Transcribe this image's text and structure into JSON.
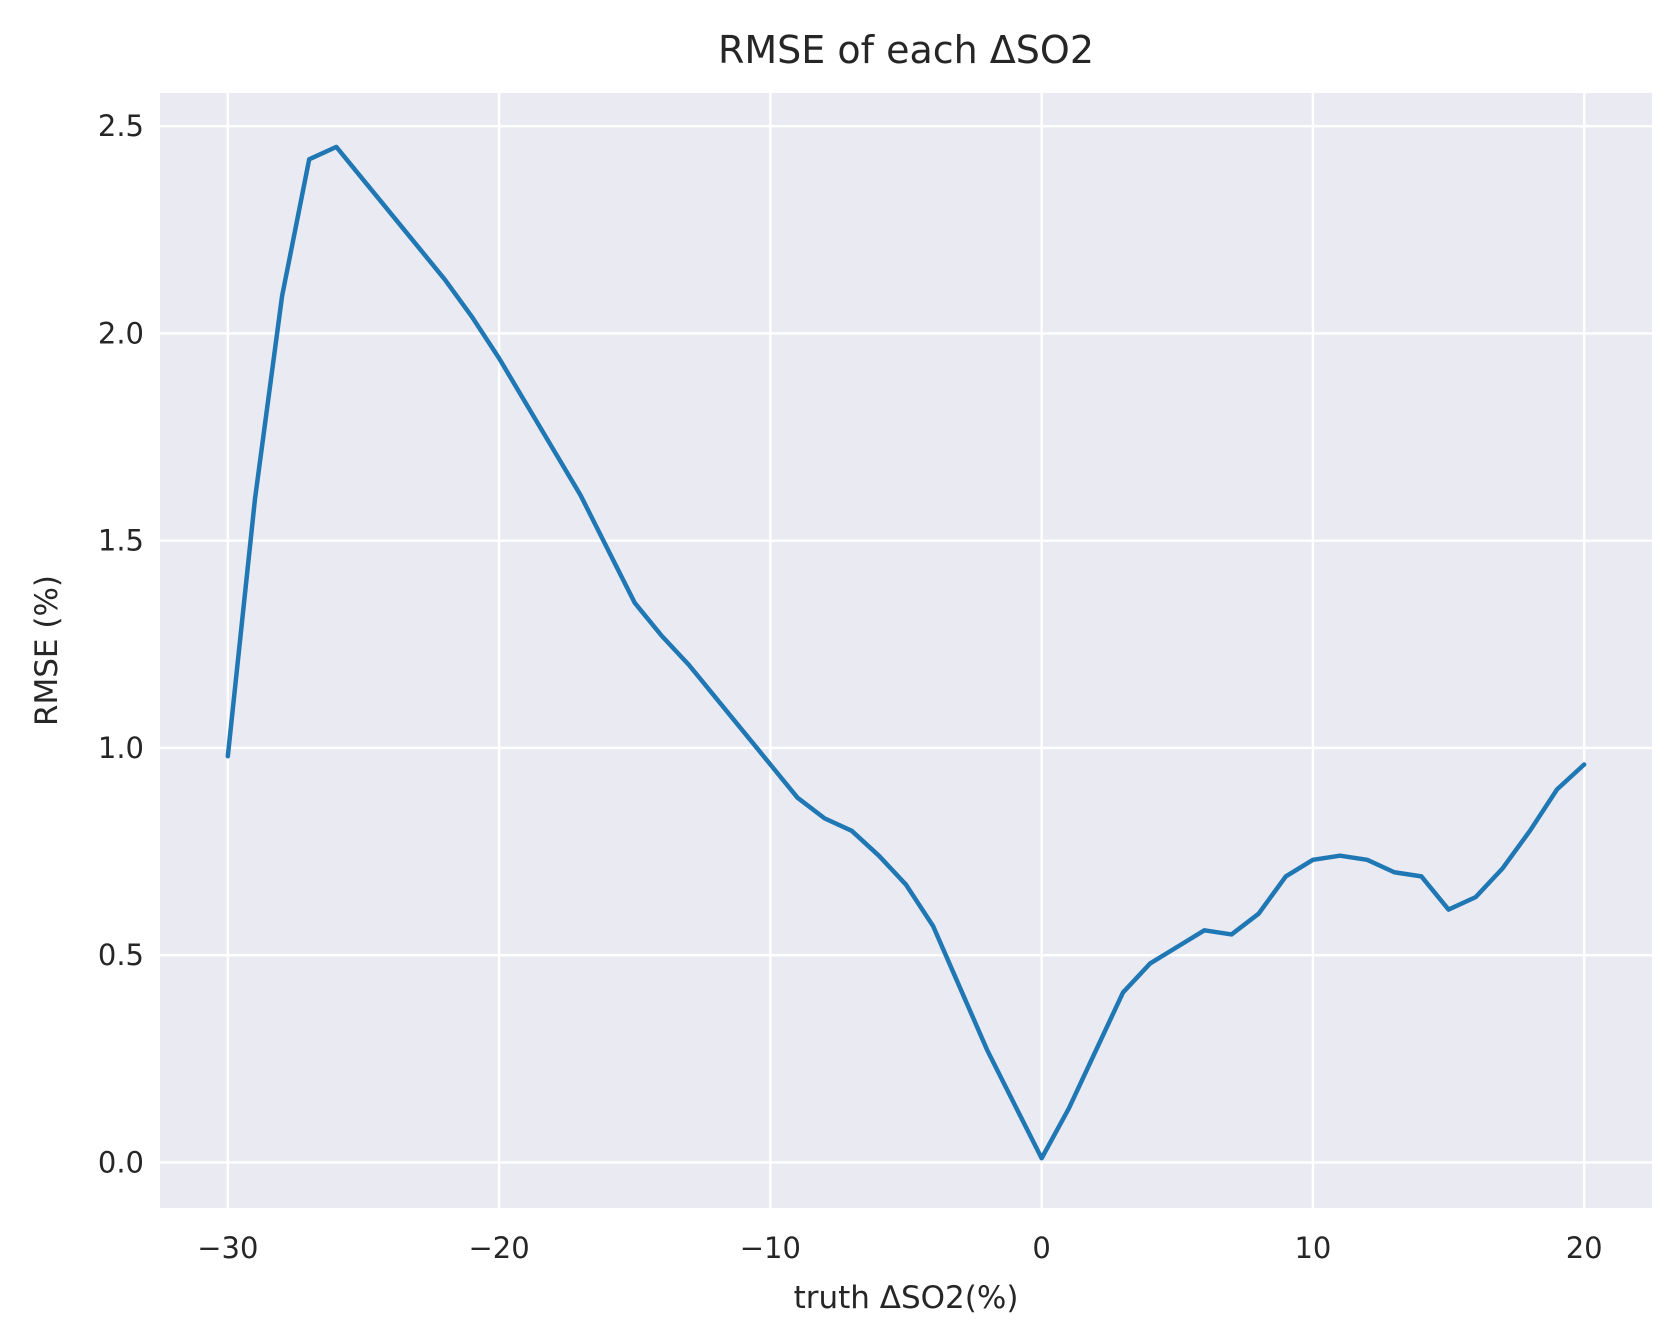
{
  "chart_data": {
    "type": "line",
    "title": "RMSE of each ΔSO2",
    "xlabel": "truth ΔSO2(%)",
    "ylabel": "RMSE (%)",
    "xlim": [
      -32.5,
      22.5
    ],
    "ylim": [
      -0.11,
      2.58
    ],
    "xticks": [
      -30,
      -20,
      -10,
      0,
      10,
      20
    ],
    "xtick_labels": [
      "−30",
      "−20",
      "−10",
      "0",
      "10",
      "20"
    ],
    "yticks": [
      0.0,
      0.5,
      1.0,
      1.5,
      2.0,
      2.5
    ],
    "ytick_labels": [
      "0.0",
      "0.5",
      "1.0",
      "1.5",
      "2.0",
      "2.5"
    ],
    "grid": true,
    "colors": {
      "background": "#eaeaf2",
      "grid": "#ffffff",
      "line": "#1f77b4"
    },
    "series": [
      {
        "x": [
          -30,
          -29,
          -28,
          -27,
          -26,
          -25,
          -24,
          -23,
          -22,
          -21,
          -20,
          -19,
          -18,
          -17,
          -16,
          -15,
          -14,
          -13,
          -12,
          -11,
          -10,
          -9,
          -8,
          -7,
          -6,
          -5,
          -4,
          -3,
          -2,
          -1,
          0,
          1,
          2,
          3,
          4,
          5,
          6,
          7,
          8,
          9,
          10,
          11,
          12,
          13,
          14,
          15,
          16,
          17,
          18,
          19,
          20
        ],
        "y": [
          0.98,
          1.6,
          2.09,
          2.42,
          2.45,
          2.37,
          2.29,
          2.21,
          2.13,
          2.04,
          1.94,
          1.83,
          1.72,
          1.61,
          1.48,
          1.35,
          1.27,
          1.2,
          1.12,
          1.04,
          0.96,
          0.88,
          0.83,
          0.8,
          0.74,
          0.67,
          0.57,
          0.42,
          0.27,
          0.14,
          0.01,
          0.13,
          0.27,
          0.41,
          0.48,
          0.52,
          0.56,
          0.55,
          0.6,
          0.69,
          0.73,
          0.74,
          0.73,
          0.7,
          0.69,
          0.61,
          0.64,
          0.71,
          0.8,
          0.9,
          0.96
        ]
      }
    ]
  }
}
